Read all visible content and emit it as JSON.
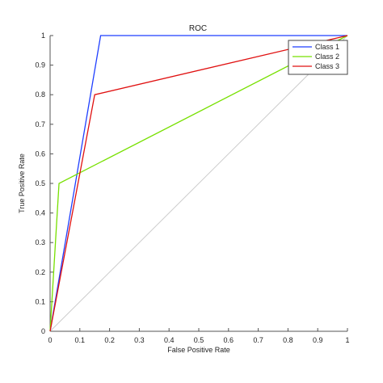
{
  "chart_data": {
    "type": "line",
    "title": "ROC",
    "xlabel": "False Positive Rate",
    "ylabel": "True Positive Rate",
    "xlim": [
      0,
      1
    ],
    "ylim": [
      0,
      1
    ],
    "xticks": [
      "0",
      "0.1",
      "0.2",
      "0.3",
      "0.4",
      "0.5",
      "0.6",
      "0.7",
      "0.8",
      "0.9",
      "1"
    ],
    "yticks": [
      "0",
      "0.1",
      "0.2",
      "0.3",
      "0.4",
      "0.5",
      "0.6",
      "0.7",
      "0.8",
      "0.9",
      "1"
    ],
    "grid": false,
    "legend_position": "top-right",
    "reference_line": {
      "x": [
        0,
        1
      ],
      "y": [
        0,
        1
      ],
      "color": "#cccccc"
    },
    "series": [
      {
        "name": "Class 1",
        "color": "#1f3fff",
        "x": [
          0,
          0.17,
          1
        ],
        "y": [
          0,
          1,
          1
        ]
      },
      {
        "name": "Class 2",
        "color": "#77e000",
        "x": [
          0,
          0.03,
          1
        ],
        "y": [
          0,
          0.5,
          1
        ]
      },
      {
        "name": "Class 3",
        "color": "#e01010",
        "x": [
          0,
          0.15,
          1
        ],
        "y": [
          0,
          0.8,
          1
        ]
      }
    ]
  }
}
